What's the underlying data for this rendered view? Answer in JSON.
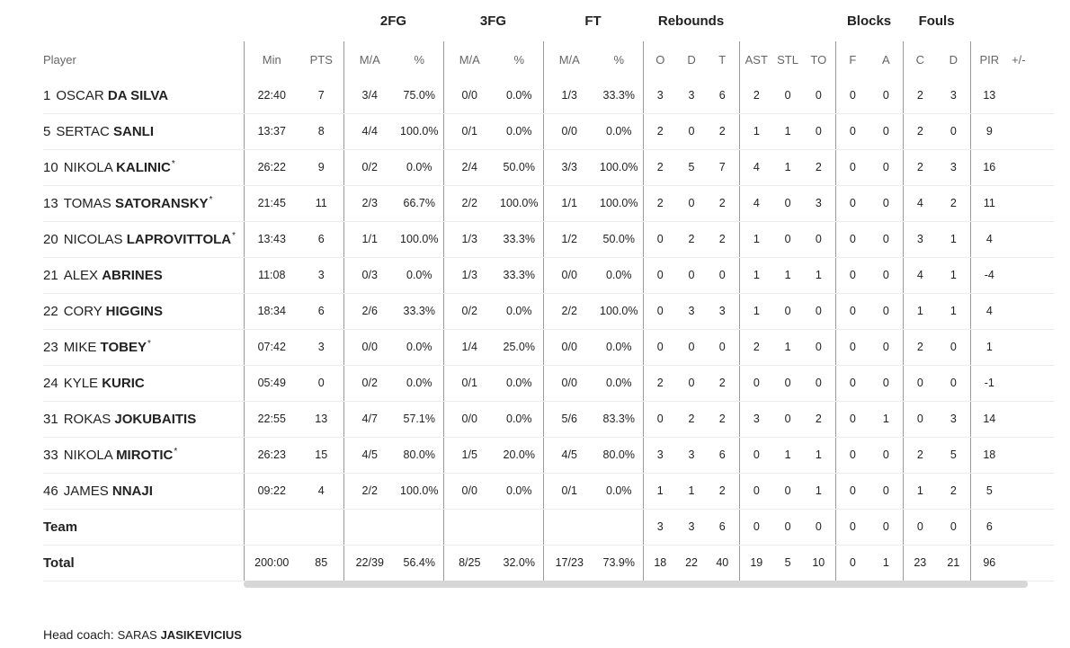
{
  "groups": [
    "2FG",
    "3FG",
    "FT",
    "Rebounds",
    "Blocks",
    "Fouls"
  ],
  "columns": [
    "Player",
    "Min",
    "PTS",
    "M/A",
    "%",
    "M/A",
    "%",
    "M/A",
    "%",
    "O",
    "D",
    "T",
    "AST",
    "STL",
    "TO",
    "F",
    "A",
    "C",
    "D",
    "PIR",
    "+/-"
  ],
  "players": [
    {
      "number": "1",
      "first": "OSCAR",
      "last": "DA SILVA",
      "starter": "",
      "min": "22:40",
      "pts": "7",
      "fg2": "3/4",
      "fg2_pct": "75.0%",
      "fg3": "0/0",
      "fg3_pct": "0.0%",
      "ft": "1/3",
      "ft_pct": "33.3%",
      "reb_o": "3",
      "reb_d": "3",
      "reb_t": "6",
      "ast": "2",
      "stl": "0",
      "to": "0",
      "blk_f": "0",
      "blk_a": "0",
      "foul_c": "2",
      "foul_d": "3",
      "pir": "13",
      "pm": ""
    },
    {
      "number": "5",
      "first": "SERTAC",
      "last": "SANLI",
      "starter": "",
      "min": "13:37",
      "pts": "8",
      "fg2": "4/4",
      "fg2_pct": "100.0%",
      "fg3": "0/1",
      "fg3_pct": "0.0%",
      "ft": "0/0",
      "ft_pct": "0.0%",
      "reb_o": "2",
      "reb_d": "0",
      "reb_t": "2",
      "ast": "1",
      "stl": "1",
      "to": "0",
      "blk_f": "0",
      "blk_a": "0",
      "foul_c": "2",
      "foul_d": "0",
      "pir": "9",
      "pm": ""
    },
    {
      "number": "10",
      "first": "NIKOLA",
      "last": "KALINIC",
      "starter": "*",
      "min": "26:22",
      "pts": "9",
      "fg2": "0/2",
      "fg2_pct": "0.0%",
      "fg3": "2/4",
      "fg3_pct": "50.0%",
      "ft": "3/3",
      "ft_pct": "100.0%",
      "reb_o": "2",
      "reb_d": "5",
      "reb_t": "7",
      "ast": "4",
      "stl": "1",
      "to": "2",
      "blk_f": "0",
      "blk_a": "0",
      "foul_c": "2",
      "foul_d": "3",
      "pir": "16",
      "pm": ""
    },
    {
      "number": "13",
      "first": "TOMAS",
      "last": "SATORANSKY",
      "starter": "*",
      "min": "21:45",
      "pts": "11",
      "fg2": "2/3",
      "fg2_pct": "66.7%",
      "fg3": "2/2",
      "fg3_pct": "100.0%",
      "ft": "1/1",
      "ft_pct": "100.0%",
      "reb_o": "2",
      "reb_d": "0",
      "reb_t": "2",
      "ast": "4",
      "stl": "0",
      "to": "3",
      "blk_f": "0",
      "blk_a": "0",
      "foul_c": "4",
      "foul_d": "2",
      "pir": "11",
      "pm": ""
    },
    {
      "number": "20",
      "first": "NICOLAS",
      "last": "LAPROVITTOLA",
      "starter": "*",
      "min": "13:43",
      "pts": "6",
      "fg2": "1/1",
      "fg2_pct": "100.0%",
      "fg3": "1/3",
      "fg3_pct": "33.3%",
      "ft": "1/2",
      "ft_pct": "50.0%",
      "reb_o": "0",
      "reb_d": "2",
      "reb_t": "2",
      "ast": "1",
      "stl": "0",
      "to": "0",
      "blk_f": "0",
      "blk_a": "0",
      "foul_c": "3",
      "foul_d": "1",
      "pir": "4",
      "pm": ""
    },
    {
      "number": "21",
      "first": "ALEX",
      "last": "ABRINES",
      "starter": "",
      "min": "11:08",
      "pts": "3",
      "fg2": "0/3",
      "fg2_pct": "0.0%",
      "fg3": "1/3",
      "fg3_pct": "33.3%",
      "ft": "0/0",
      "ft_pct": "0.0%",
      "reb_o": "0",
      "reb_d": "0",
      "reb_t": "0",
      "ast": "1",
      "stl": "1",
      "to": "1",
      "blk_f": "0",
      "blk_a": "0",
      "foul_c": "4",
      "foul_d": "1",
      "pir": "-4",
      "pm": ""
    },
    {
      "number": "22",
      "first": "CORY",
      "last": "HIGGINS",
      "starter": "",
      "min": "18:34",
      "pts": "6",
      "fg2": "2/6",
      "fg2_pct": "33.3%",
      "fg3": "0/2",
      "fg3_pct": "0.0%",
      "ft": "2/2",
      "ft_pct": "100.0%",
      "reb_o": "0",
      "reb_d": "3",
      "reb_t": "3",
      "ast": "1",
      "stl": "0",
      "to": "0",
      "blk_f": "0",
      "blk_a": "0",
      "foul_c": "1",
      "foul_d": "1",
      "pir": "4",
      "pm": ""
    },
    {
      "number": "23",
      "first": "MIKE",
      "last": "TOBEY",
      "starter": "*",
      "min": "07:42",
      "pts": "3",
      "fg2": "0/0",
      "fg2_pct": "0.0%",
      "fg3": "1/4",
      "fg3_pct": "25.0%",
      "ft": "0/0",
      "ft_pct": "0.0%",
      "reb_o": "0",
      "reb_d": "0",
      "reb_t": "0",
      "ast": "2",
      "stl": "1",
      "to": "0",
      "blk_f": "0",
      "blk_a": "0",
      "foul_c": "2",
      "foul_d": "0",
      "pir": "1",
      "pm": ""
    },
    {
      "number": "24",
      "first": "KYLE",
      "last": "KURIC",
      "starter": "",
      "min": "05:49",
      "pts": "0",
      "fg2": "0/2",
      "fg2_pct": "0.0%",
      "fg3": "0/1",
      "fg3_pct": "0.0%",
      "ft": "0/0",
      "ft_pct": "0.0%",
      "reb_o": "2",
      "reb_d": "0",
      "reb_t": "2",
      "ast": "0",
      "stl": "0",
      "to": "0",
      "blk_f": "0",
      "blk_a": "0",
      "foul_c": "0",
      "foul_d": "0",
      "pir": "-1",
      "pm": ""
    },
    {
      "number": "31",
      "first": "ROKAS",
      "last": "JOKUBAITIS",
      "starter": "",
      "min": "22:55",
      "pts": "13",
      "fg2": "4/7",
      "fg2_pct": "57.1%",
      "fg3": "0/0",
      "fg3_pct": "0.0%",
      "ft": "5/6",
      "ft_pct": "83.3%",
      "reb_o": "0",
      "reb_d": "2",
      "reb_t": "2",
      "ast": "3",
      "stl": "0",
      "to": "2",
      "blk_f": "0",
      "blk_a": "1",
      "foul_c": "0",
      "foul_d": "3",
      "pir": "14",
      "pm": ""
    },
    {
      "number": "33",
      "first": "NIKOLA",
      "last": "MIROTIC",
      "starter": "*",
      "min": "26:23",
      "pts": "15",
      "fg2": "4/5",
      "fg2_pct": "80.0%",
      "fg3": "1/5",
      "fg3_pct": "20.0%",
      "ft": "4/5",
      "ft_pct": "80.0%",
      "reb_o": "3",
      "reb_d": "3",
      "reb_t": "6",
      "ast": "0",
      "stl": "1",
      "to": "1",
      "blk_f": "0",
      "blk_a": "0",
      "foul_c": "2",
      "foul_d": "5",
      "pir": "18",
      "pm": ""
    },
    {
      "number": "46",
      "first": "JAMES",
      "last": "NNAJI",
      "starter": "",
      "min": "09:22",
      "pts": "4",
      "fg2": "2/2",
      "fg2_pct": "100.0%",
      "fg3": "0/0",
      "fg3_pct": "0.0%",
      "ft": "0/1",
      "ft_pct": "0.0%",
      "reb_o": "1",
      "reb_d": "1",
      "reb_t": "2",
      "ast": "0",
      "stl": "0",
      "to": "1",
      "blk_f": "0",
      "blk_a": "0",
      "foul_c": "1",
      "foul_d": "2",
      "pir": "5",
      "pm": ""
    }
  ],
  "team": {
    "label": "Team",
    "min": "",
    "pts": "",
    "fg2": "",
    "fg2_pct": "",
    "fg3": "",
    "fg3_pct": "",
    "ft": "",
    "ft_pct": "",
    "reb_o": "3",
    "reb_d": "3",
    "reb_t": "6",
    "ast": "0",
    "stl": "0",
    "to": "0",
    "blk_f": "0",
    "blk_a": "0",
    "foul_c": "0",
    "foul_d": "0",
    "pir": "6",
    "pm": ""
  },
  "total": {
    "label": "Total",
    "min": "200:00",
    "pts": "85",
    "fg2": "22/39",
    "fg2_pct": "56.4%",
    "fg3": "8/25",
    "fg3_pct": "32.0%",
    "ft": "17/23",
    "ft_pct": "73.9%",
    "reb_o": "18",
    "reb_d": "22",
    "reb_t": "40",
    "ast": "19",
    "stl": "5",
    "to": "10",
    "blk_f": "0",
    "blk_a": "1",
    "foul_c": "23",
    "foul_d": "21",
    "pir": "96",
    "pm": ""
  },
  "coach": {
    "label": "Head coach:",
    "first": "SARAS",
    "last": "JASIKEVICIUS"
  }
}
